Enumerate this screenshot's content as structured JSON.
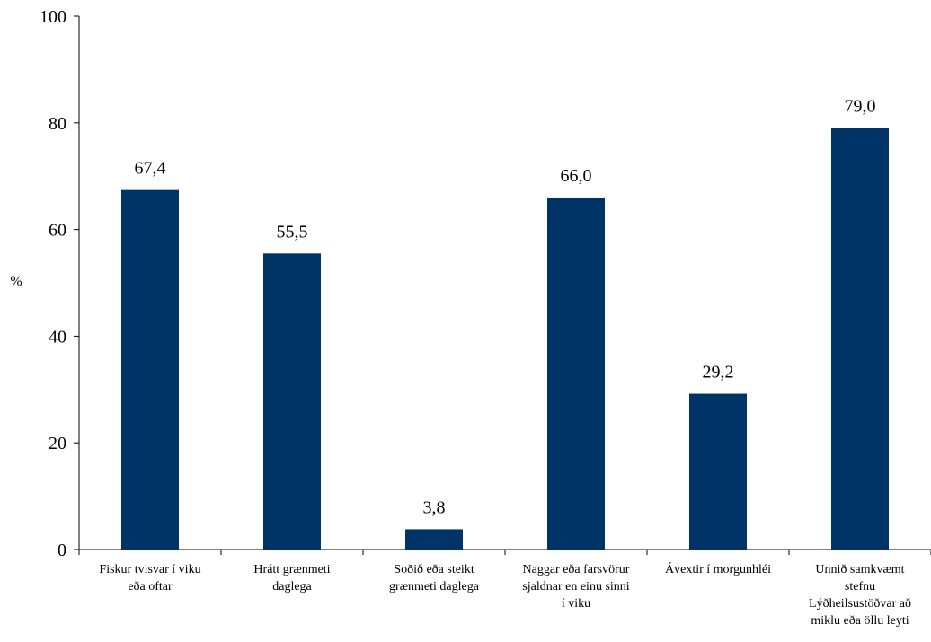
{
  "chart_data": {
    "type": "bar",
    "ylabel": "%",
    "xlabel": "",
    "ylim": [
      0,
      100
    ],
    "yticks": [
      0,
      20,
      40,
      60,
      80,
      100
    ],
    "grid": false,
    "bar_color": "#003366",
    "categories": [
      [
        "Fiskur tvisvar í viku",
        "eða oftar"
      ],
      [
        "Hrátt grænmeti",
        "daglega"
      ],
      [
        "Soðið eða steikt",
        "grænmeti daglega"
      ],
      [
        "Naggar eða farsvörur",
        "sjaldnar en einu sinni",
        "í viku"
      ],
      [
        "Ávextir í morgunhléi"
      ],
      [
        "Unnið samkvæmt",
        "stefnu",
        "Lýðheilsustöðvar að",
        "miklu eða öllu leyti"
      ]
    ],
    "values": [
      67.4,
      55.5,
      3.8,
      66.0,
      29.2,
      79.0
    ],
    "value_labels": [
      "67,4",
      "55,5",
      "3,8",
      "66,0",
      "29,2",
      "79,0"
    ]
  }
}
